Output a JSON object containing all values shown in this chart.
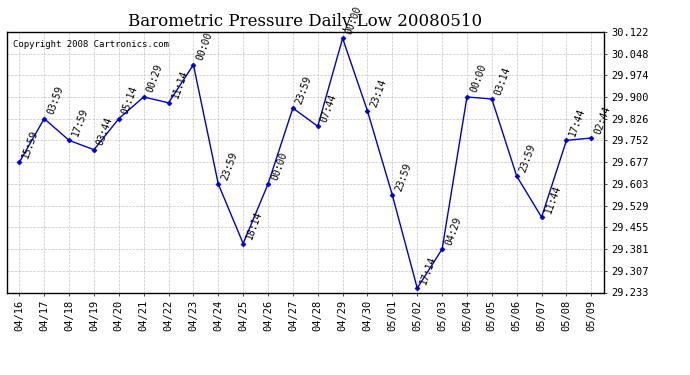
{
  "title": "Barometric Pressure Daily Low 20080510",
  "copyright": "Copyright 2008 Cartronics.com",
  "x_labels": [
    "04/16",
    "04/17",
    "04/18",
    "04/19",
    "04/20",
    "04/21",
    "04/22",
    "04/23",
    "04/24",
    "04/25",
    "04/26",
    "04/27",
    "04/28",
    "04/29",
    "04/30",
    "05/01",
    "05/02",
    "05/03",
    "05/04",
    "05/05",
    "05/06",
    "05/07",
    "05/08",
    "05/09"
  ],
  "y_values": [
    29.677,
    29.826,
    29.752,
    29.72,
    29.826,
    29.9,
    29.88,
    30.01,
    29.603,
    29.4,
    29.603,
    29.862,
    29.8,
    30.1,
    29.852,
    29.565,
    29.248,
    29.381,
    29.9,
    29.893,
    29.63,
    29.49,
    29.752,
    29.76
  ],
  "annotations": [
    "15:59",
    "03:59",
    "17:59",
    "03:44",
    "05:14",
    "00:29",
    "11:14",
    "00:00",
    "23:59",
    "18:14",
    "00:00",
    "23:59",
    "07:44",
    "00:00",
    "23:14",
    "23:59",
    "17:14",
    "04:29",
    "00:00",
    "03:14",
    "23:59",
    "11:44",
    "17:44",
    "02:44"
  ],
  "ylim_min": 29.233,
  "ylim_max": 30.122,
  "yticks": [
    29.233,
    29.307,
    29.381,
    29.455,
    29.529,
    29.603,
    29.677,
    29.752,
    29.826,
    29.9,
    29.974,
    30.048,
    30.122
  ],
  "line_color": "#0000CC",
  "marker_color": "#0000CC",
  "background_color": "#ffffff",
  "grid_color": "#aaaaaa",
  "title_fontsize": 12,
  "annotation_fontsize": 7,
  "xlabel_fontsize": 7.5,
  "ylabel_fontsize": 7.5,
  "copyright_fontsize": 6.5
}
